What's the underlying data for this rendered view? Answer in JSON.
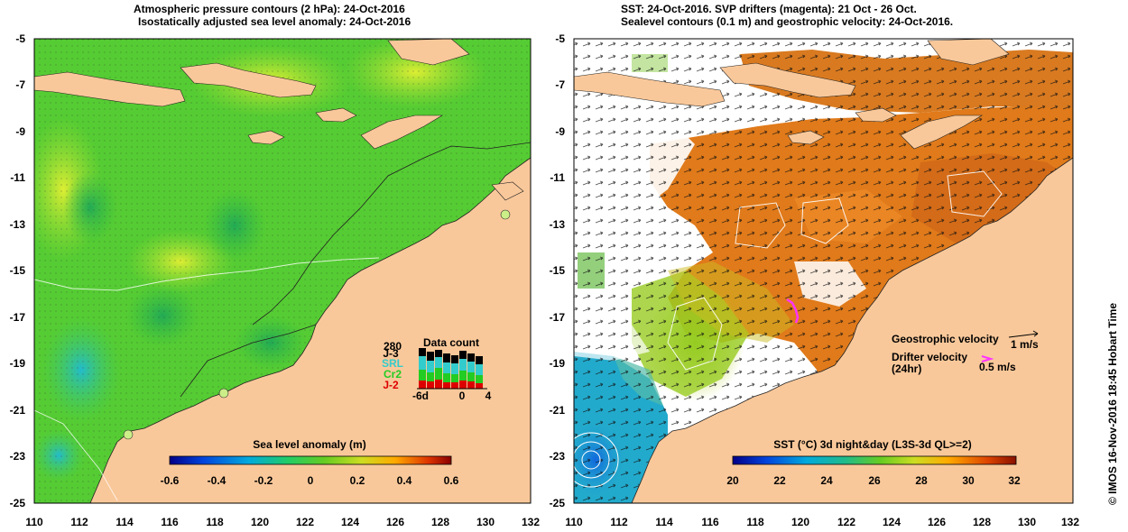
{
  "left_panel": {
    "title_line1": "Atmospheric pressure contours (2 hPa): 24-Oct-2016",
    "title_line2": "Isostatically adjusted sea level anomaly: 24-Oct-2016",
    "colorbar_title": "Sea level anomaly (m)",
    "colorbar_ticks": [
      "-0.6",
      "-0.4",
      "-0.2",
      "0",
      "0.2",
      "0.4",
      "0.6"
    ],
    "colorbar_range": [
      -0.6,
      0.6
    ],
    "data_count": {
      "title": "Data count",
      "max_label": "280",
      "satellites": [
        {
          "name": "J-3",
          "color": "#000000"
        },
        {
          "name": "SRL",
          "color": "#33cccc"
        },
        {
          "name": "Cr2",
          "color": "#22cc22"
        },
        {
          "name": "J-2",
          "color": "#dd0000"
        }
      ],
      "x_ticks": [
        "-6d",
        "0",
        "4"
      ]
    }
  },
  "right_panel": {
    "title_line1": "SST: 24-Oct-2016. SVP drifters (magenta): 21 Oct - 26 Oct.",
    "title_line2": "Sealevel contours (0.1 m) and geostrophic velocity: 24-Oct-2016.",
    "colorbar_title": "SST (°C) 3d night&day (L3S-3d QL>=2)",
    "colorbar_ticks": [
      "20",
      "22",
      "24",
      "26",
      "28",
      "30",
      "32"
    ],
    "colorbar_range": [
      20,
      32
    ],
    "legend": {
      "geostrophic_label": "Geostrophic velocity",
      "geostrophic_scale": "1 m/s",
      "drifter_label_line1": "Drifter velocity",
      "drifter_label_line2": "(24hr)",
      "drifter_scale": "0.5 m/s"
    }
  },
  "axes": {
    "lon_ticks": [
      "110",
      "112",
      "114",
      "116",
      "118",
      "120",
      "122",
      "124",
      "126",
      "128",
      "130",
      "132"
    ],
    "lat_ticks": [
      "-5",
      "-7",
      "-9",
      "-11",
      "-13",
      "-15",
      "-17",
      "-19",
      "-21",
      "-23",
      "-25"
    ],
    "lon_range": [
      110,
      132
    ],
    "lat_range": [
      -25,
      -5
    ]
  },
  "stamp": "© IMOS 16-Nov-2016 18:45 Hobart Time",
  "colors": {
    "land": "#f9c89a",
    "ocean_sla_mid": "#55cc33",
    "sst_warm": "#e07a1a",
    "drifter": "#ff33ff"
  }
}
